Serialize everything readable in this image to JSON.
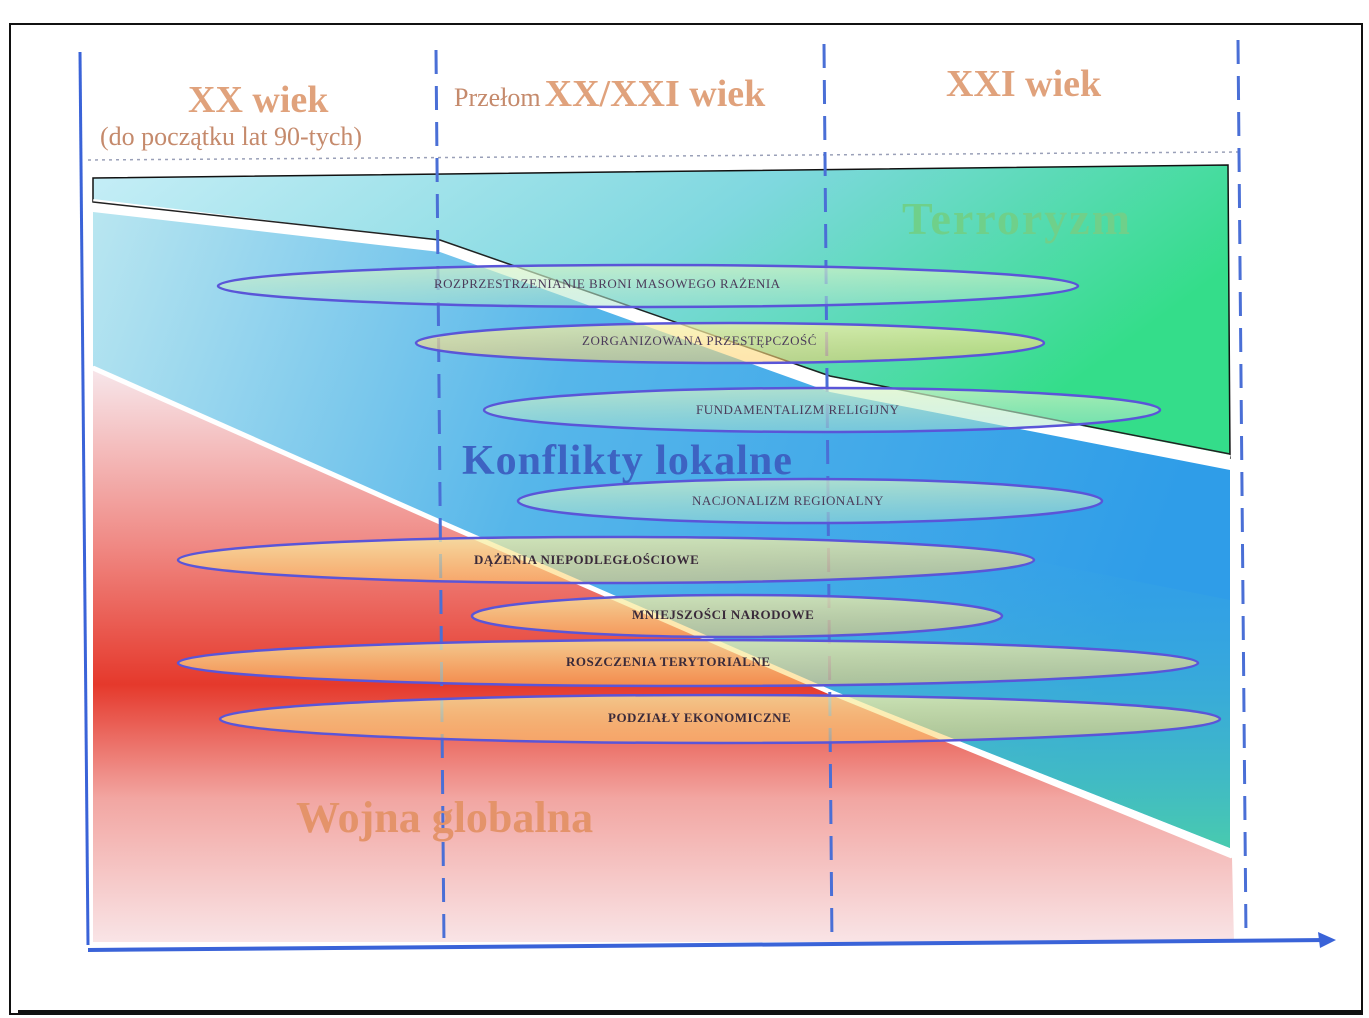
{
  "eras": [
    {
      "id": "xx",
      "label": "XX wiek",
      "sublabel": "(do początku lat 90-tych)"
    },
    {
      "id": "transition",
      "prefix": "Przełom",
      "label": "XX/XXI wiek"
    },
    {
      "id": "xxi",
      "label": "XXI wiek"
    }
  ],
  "zones": {
    "terrorism": "Terroryzm",
    "local_conflicts": "Konflikty lokalne",
    "global_war": "Wojna globalna"
  },
  "threats": [
    "ROZPRZESTRZENIANIE BRONI MASOWEGO RAŻENIA",
    "ZORGANIZOWANA PRZESTĘPCZOŚĆ",
    "FUNDAMENTALIZM RELIGIJNY",
    "NACJONALIZM REGIONALNY",
    "DĄŻENIA NIEPODLEGŁOŚCIOWE",
    "MNIEJSZOŚCI NARODOWE",
    "ROSZCZENIA TERYTORIALNE",
    "PODZIAŁY EKONOMICZNE"
  ],
  "colors": {
    "axis": "#3a63d8",
    "divider": "#4a6fd6",
    "ellipse_stroke": "#5a55d8",
    "terror_fill": "#33dd88",
    "local_fill": "#3aa0ea",
    "global_fill": "#e83a2a"
  }
}
